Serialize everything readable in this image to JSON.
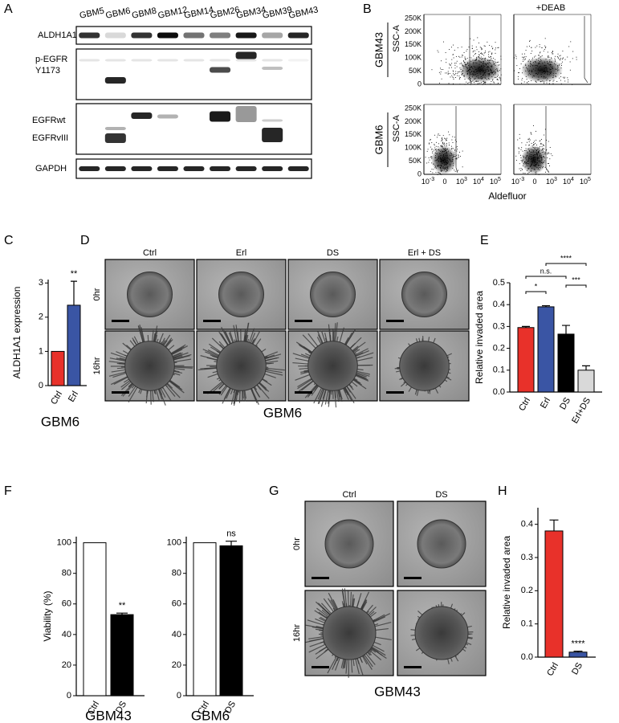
{
  "panel_labels": [
    "A",
    "B",
    "C",
    "D",
    "E",
    "F",
    "G",
    "H"
  ],
  "blot": {
    "lanes": [
      "GBM5",
      "GBM6",
      "GBM8",
      "GBM12",
      "GBM14",
      "GBM26",
      "GBM34",
      "GBM39",
      "GBM43"
    ],
    "row_labels": [
      "ALDH1A1",
      "p-EGFR",
      "Y1173",
      "EGFRwt",
      "EGFRvIII",
      "GAPDH"
    ]
  },
  "flow": {
    "condition": "+DEAB",
    "samples": [
      "GBM43",
      "GBM6"
    ],
    "y_label": "SSC-A",
    "yticks": [
      "250K",
      "200K",
      "150K",
      "100K",
      "50K",
      "0"
    ],
    "xticks": [
      {
        "base": "10",
        "exp": "-3"
      },
      {
        "base": "0"
      },
      {
        "base": "10",
        "exp": "3"
      },
      {
        "base": "10",
        "exp": "4"
      },
      {
        "base": "10",
        "exp": "5"
      }
    ],
    "x_label": "Aldefluor"
  },
  "spheroids_d": {
    "columns": [
      "Ctrl",
      "Erl",
      "DS",
      "Erl + DS"
    ],
    "rows": [
      "0hr",
      "16hr"
    ],
    "caption": "GBM6"
  },
  "spheroids_g": {
    "columns": [
      "Ctrl",
      "DS"
    ],
    "rows": [
      "0hr",
      "16hr"
    ],
    "caption": "GBM43"
  },
  "chart_data": [
    {
      "type": "bar",
      "y_label": "ALDH1A1 expression",
      "caption": "GBM6",
      "categories": [
        "Ctrl",
        "Erl"
      ],
      "values": [
        1.0,
        2.35
      ],
      "errors": [
        null,
        0.7
      ],
      "colors": [
        "#e8312a",
        "#3a55a4"
      ],
      "significance": [
        null,
        "**"
      ],
      "ylim": [
        0,
        3.1
      ],
      "yticks": [
        0,
        1,
        2,
        3
      ]
    },
    {
      "type": "bar",
      "y_label": "Relative invaded area",
      "categories": [
        "Ctrl",
        "Erl",
        "DS",
        "Erl+DS"
      ],
      "values": [
        0.295,
        0.39,
        0.265,
        0.1
      ],
      "errors": [
        0.005,
        0.005,
        0.04,
        0.02
      ],
      "colors": [
        "#e8312a",
        "#3a55a4",
        "#000000",
        "#d9d9d9"
      ],
      "brackets": [
        {
          "label": "*",
          "from": "Ctrl",
          "to": "Erl"
        },
        {
          "label": "n.s.",
          "from": "Ctrl",
          "to": "DS"
        },
        {
          "label": "****",
          "from": "Erl",
          "to": "Erl+DS"
        },
        {
          "label": "***",
          "from": "DS",
          "to": "Erl+DS"
        }
      ],
      "ylim": [
        0,
        0.5
      ],
      "yticks": [
        {
          "value": 0,
          "label": "0.0"
        },
        0.1,
        0.2,
        0.3,
        0.4,
        0.5
      ]
    },
    {
      "type": "bar",
      "y_label": "Viability (%)",
      "caption": "GBM43",
      "categories": [
        "Ctrl",
        "DS"
      ],
      "values": [
        100,
        53
      ],
      "errors": [
        null,
        1
      ],
      "colors": [
        "#ffffff",
        "#000000"
      ],
      "significance": [
        null,
        "**"
      ],
      "ylim": [
        0,
        104
      ],
      "yticks": [
        0,
        20,
        40,
        60,
        80,
        100
      ]
    },
    {
      "type": "bar",
      "caption": "GBM6",
      "categories": [
        "Ctrl",
        "DS"
      ],
      "values": [
        100,
        98
      ],
      "errors": [
        null,
        3
      ],
      "colors": [
        "#ffffff",
        "#000000"
      ],
      "significance": [
        null,
        "ns"
      ],
      "ylim": [
        0,
        104
      ],
      "yticks": [
        0,
        20,
        40,
        60,
        80,
        100
      ]
    },
    {
      "type": "bar",
      "y_label": "Relative invaded area",
      "categories": [
        "Ctrl",
        "DS"
      ],
      "values": [
        0.38,
        0.015
      ],
      "errors": [
        0.033,
        0.003
      ],
      "colors": [
        "#e8312a",
        "#3a55a4"
      ],
      "significance": [
        null,
        "****"
      ],
      "ylim": [
        0,
        0.45
      ],
      "yticks": [
        {
          "value": 0,
          "label": "0.0"
        },
        0.1,
        0.2,
        0.3,
        0.4
      ]
    }
  ]
}
